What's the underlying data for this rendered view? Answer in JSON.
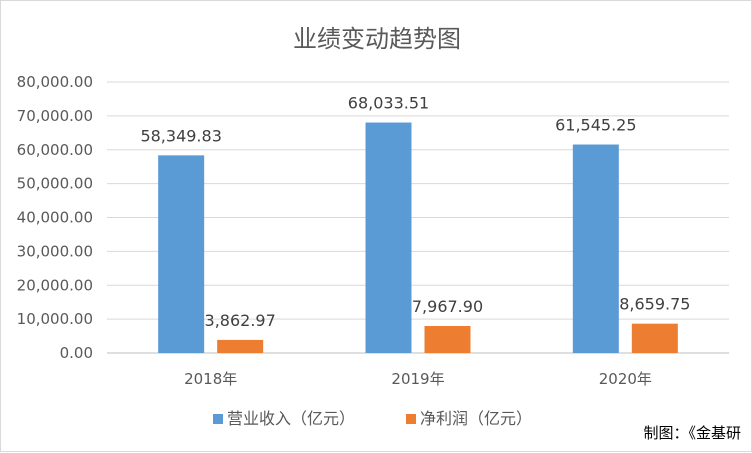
{
  "chart_data": {
    "type": "bar",
    "title": "业绩变动趋势图",
    "categories": [
      "2018年",
      "2019年",
      "2020年"
    ],
    "series": [
      {
        "name": "营业收入（亿元）",
        "color": "#5b9bd5",
        "values": [
          58349.83,
          68033.51,
          61545.25
        ],
        "labels": [
          "58,349.83",
          "68,033.51",
          "61,545.25"
        ]
      },
      {
        "name": "净利润（亿元）",
        "color": "#ed7d31",
        "values": [
          3862.97,
          7967.9,
          8659.75
        ],
        "labels": [
          "3,862.97",
          "7,967.90",
          "8,659.75"
        ]
      }
    ],
    "ylim": [
      0,
      80000
    ],
    "yticks": [
      0,
      10000,
      20000,
      30000,
      40000,
      50000,
      60000,
      70000,
      80000
    ],
    "ytick_labels": [
      "0.00",
      "10,000.00",
      "20,000.00",
      "30,000.00",
      "40,000.00",
      "50,000.00",
      "60,000.00",
      "70,000.00",
      "80,000.00"
    ],
    "grid": true,
    "legend_position": "bottom",
    "credit": "制图：《金基研"
  }
}
